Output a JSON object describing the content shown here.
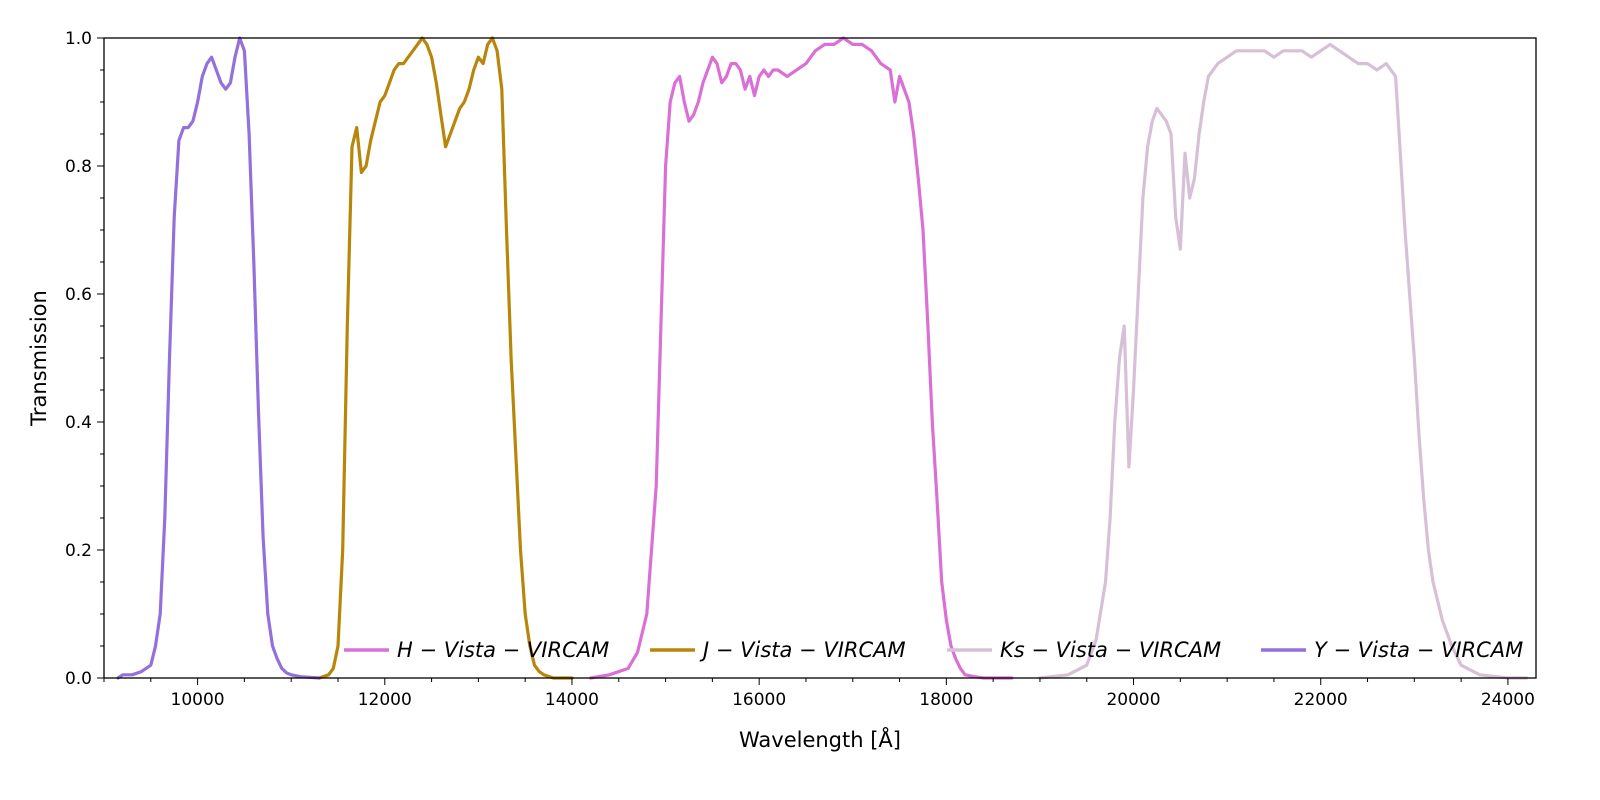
{
  "chart_data": {
    "type": "line",
    "title": "",
    "xlabel": "Wavelength [Å]",
    "ylabel": "Transmission",
    "xlim": [
      9000,
      24300
    ],
    "ylim": [
      0,
      1.0
    ],
    "x_ticks": [
      10000,
      12000,
      14000,
      16000,
      18000,
      20000,
      22000,
      24000
    ],
    "x_tick_labels": [
      "10000",
      "12000",
      "14000",
      "16000",
      "18000",
      "20000",
      "22000",
      "24000"
    ],
    "y_ticks": [
      0.0,
      0.2,
      0.4,
      0.6,
      0.8,
      1.0
    ],
    "y_tick_labels": [
      "0.0",
      "0.2",
      "0.4",
      "0.6",
      "0.8",
      "1.0"
    ],
    "grid": false,
    "legend_position": "bottom",
    "series": [
      {
        "name": "H − Vista − VIRCAM",
        "color": "#da70d6",
        "x": [
          14200,
          14400,
          14600,
          14700,
          14800,
          14900,
          14950,
          15000,
          15050,
          15100,
          15150,
          15200,
          15250,
          15300,
          15350,
          15400,
          15450,
          15500,
          15550,
          15600,
          15650,
          15700,
          15750,
          15800,
          15850,
          15900,
          15950,
          16000,
          16050,
          16100,
          16150,
          16200,
          16300,
          16400,
          16500,
          16600,
          16700,
          16800,
          16900,
          17000,
          17100,
          17200,
          17300,
          17400,
          17450,
          17500,
          17550,
          17600,
          17650,
          17700,
          17750,
          17800,
          17850,
          17900,
          17950,
          18000,
          18050,
          18100,
          18150,
          18200,
          18300,
          18400,
          18500,
          18700
        ],
        "y": [
          0.0,
          0.005,
          0.015,
          0.04,
          0.1,
          0.3,
          0.55,
          0.8,
          0.9,
          0.93,
          0.94,
          0.9,
          0.87,
          0.88,
          0.9,
          0.93,
          0.95,
          0.97,
          0.96,
          0.93,
          0.94,
          0.96,
          0.96,
          0.95,
          0.92,
          0.94,
          0.91,
          0.94,
          0.95,
          0.94,
          0.95,
          0.95,
          0.94,
          0.95,
          0.96,
          0.98,
          0.99,
          0.99,
          1.0,
          0.99,
          0.99,
          0.98,
          0.96,
          0.95,
          0.9,
          0.94,
          0.92,
          0.9,
          0.85,
          0.78,
          0.7,
          0.56,
          0.4,
          0.28,
          0.15,
          0.09,
          0.05,
          0.03,
          0.015,
          0.005,
          0.002,
          0.0,
          0.0,
          0.0
        ]
      },
      {
        "name": "J − Vista − VIRCAM",
        "color": "#b8860b",
        "x": [
          11300,
          11400,
          11450,
          11500,
          11550,
          11600,
          11650,
          11700,
          11750,
          11800,
          11850,
          11900,
          11950,
          12000,
          12050,
          12100,
          12150,
          12200,
          12300,
          12400,
          12450,
          12500,
          12550,
          12600,
          12650,
          12700,
          12750,
          12800,
          12850,
          12900,
          12950,
          13000,
          13050,
          13100,
          13150,
          13200,
          13250,
          13300,
          13350,
          13400,
          13450,
          13500,
          13550,
          13600,
          13650,
          13700,
          13800,
          14000
        ],
        "y": [
          0.0,
          0.005,
          0.015,
          0.05,
          0.2,
          0.55,
          0.83,
          0.86,
          0.79,
          0.8,
          0.84,
          0.87,
          0.9,
          0.91,
          0.93,
          0.95,
          0.96,
          0.96,
          0.98,
          1.0,
          0.99,
          0.97,
          0.93,
          0.88,
          0.83,
          0.85,
          0.87,
          0.89,
          0.9,
          0.92,
          0.95,
          0.97,
          0.96,
          0.99,
          1.0,
          0.98,
          0.92,
          0.7,
          0.5,
          0.35,
          0.2,
          0.1,
          0.05,
          0.02,
          0.01,
          0.005,
          0.0,
          0.0
        ]
      },
      {
        "name": "Ks − Vista − VIRCAM",
        "color": "#d8bfd8",
        "x": [
          19000,
          19300,
          19500,
          19600,
          19700,
          19750,
          19800,
          19850,
          19900,
          19950,
          20000,
          20050,
          20100,
          20150,
          20200,
          20250,
          20300,
          20350,
          20400,
          20450,
          20500,
          20550,
          20600,
          20650,
          20700,
          20750,
          20800,
          20850,
          20900,
          21000,
          21100,
          21200,
          21300,
          21400,
          21500,
          21600,
          21700,
          21800,
          21900,
          22000,
          22100,
          22200,
          22300,
          22400,
          22500,
          22600,
          22700,
          22800,
          22850,
          22900,
          22950,
          23000,
          23050,
          23100,
          23150,
          23200,
          23300,
          23400,
          23500,
          23700,
          24000,
          24200
        ],
        "y": [
          0.0,
          0.005,
          0.02,
          0.06,
          0.15,
          0.25,
          0.4,
          0.5,
          0.55,
          0.33,
          0.45,
          0.6,
          0.75,
          0.83,
          0.87,
          0.89,
          0.88,
          0.87,
          0.85,
          0.72,
          0.67,
          0.82,
          0.75,
          0.78,
          0.85,
          0.9,
          0.94,
          0.95,
          0.96,
          0.97,
          0.98,
          0.98,
          0.98,
          0.98,
          0.97,
          0.98,
          0.98,
          0.98,
          0.97,
          0.98,
          0.99,
          0.98,
          0.97,
          0.96,
          0.96,
          0.95,
          0.96,
          0.94,
          0.82,
          0.7,
          0.6,
          0.5,
          0.38,
          0.28,
          0.2,
          0.15,
          0.09,
          0.05,
          0.02,
          0.005,
          0.0,
          0.0
        ]
      },
      {
        "name": "Y − Vista − VIRCAM",
        "color": "#9370db",
        "x": [
          9150,
          9200,
          9300,
          9400,
          9500,
          9550,
          9600,
          9650,
          9700,
          9750,
          9800,
          9850,
          9900,
          9950,
          10000,
          10050,
          10100,
          10150,
          10200,
          10250,
          10300,
          10350,
          10400,
          10450,
          10500,
          10550,
          10600,
          10650,
          10700,
          10750,
          10800,
          10850,
          10900,
          10950,
          11000,
          11100,
          11300
        ],
        "y": [
          0.0,
          0.005,
          0.005,
          0.01,
          0.02,
          0.05,
          0.1,
          0.25,
          0.5,
          0.72,
          0.84,
          0.86,
          0.86,
          0.87,
          0.9,
          0.94,
          0.96,
          0.97,
          0.95,
          0.93,
          0.92,
          0.93,
          0.97,
          1.0,
          0.98,
          0.85,
          0.65,
          0.42,
          0.22,
          0.1,
          0.05,
          0.03,
          0.015,
          0.008,
          0.005,
          0.002,
          0.0
        ]
      }
    ]
  }
}
